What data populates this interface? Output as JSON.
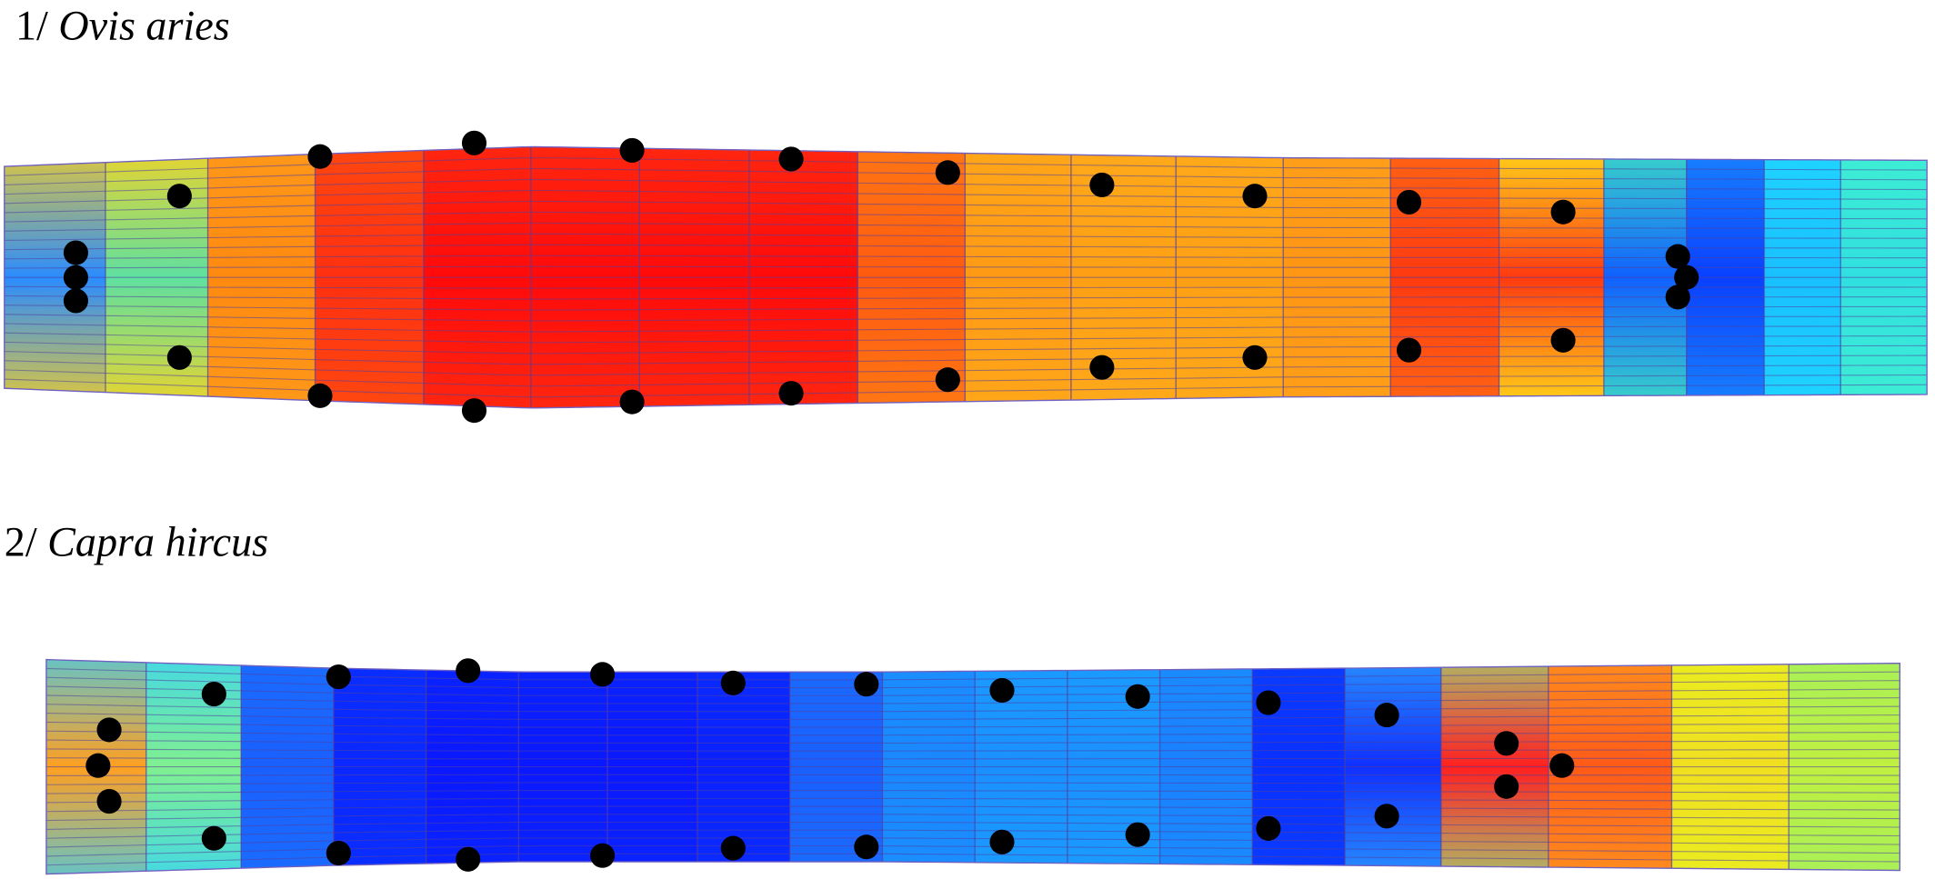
{
  "panels": [
    {
      "number": "1/",
      "name": "Ovis aries"
    },
    {
      "number": "2/",
      "name": "Capra hircus"
    }
  ]
}
